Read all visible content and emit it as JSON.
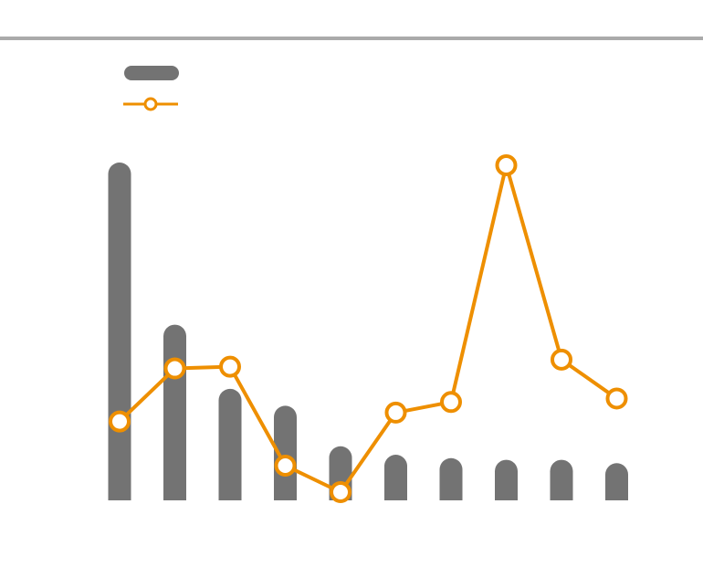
{
  "chart_data": {
    "type": "bar",
    "categories": [
      "",
      "",
      "",
      "",
      "",
      "",
      "",
      "",
      "",
      ""
    ],
    "series": [
      {
        "type": "bar",
        "values": [
          100,
          52,
          33,
          28,
          16,
          13.5,
          12.5,
          12,
          12,
          11
        ]
      },
      {
        "type": "line",
        "values": [
          8,
          14,
          14.2,
          3,
          0,
          9,
          10.2,
          37,
          15,
          10.6
        ]
      }
    ],
    "title": "",
    "xlabel": "",
    "ylabel": "",
    "ylim": [
      0,
      100
    ],
    "line_ylim": [
      0,
      37
    ],
    "grid": false,
    "legend": "top-left"
  },
  "colors": {
    "bar": "#737373",
    "line": "#ee8f00",
    "marker_fill": "#ffffff",
    "top_rule": "#aaaaaa"
  }
}
